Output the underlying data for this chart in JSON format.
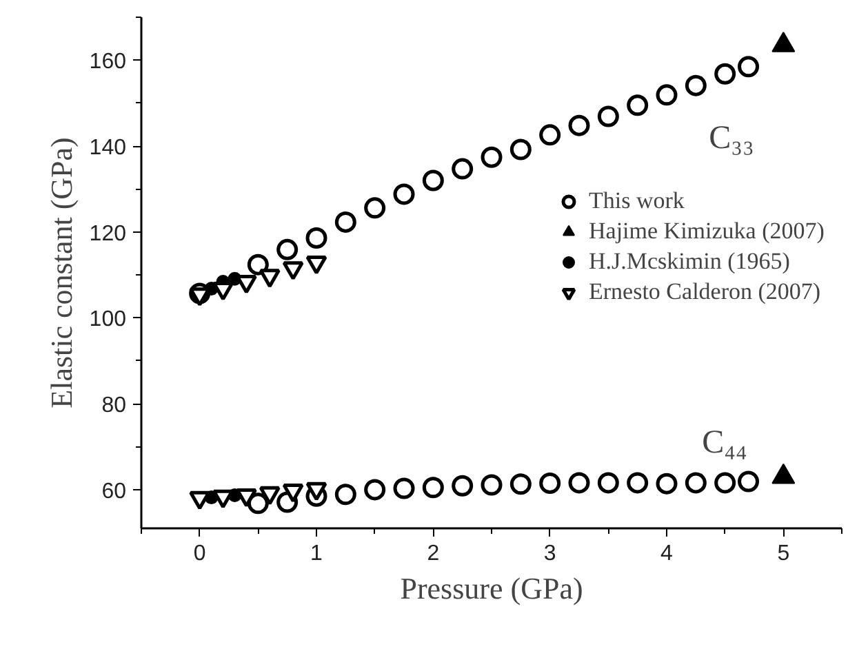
{
  "chart_data": {
    "type": "scatter",
    "xlabel": "Pressure (GPa)",
    "ylabel": "Elastic constant (GPa)",
    "xlim": [
      -0.5,
      5.5
    ],
    "ylim": [
      51,
      170
    ],
    "xticks": [
      0,
      1,
      2,
      3,
      4,
      5
    ],
    "yticks": [
      60,
      80,
      100,
      120,
      140,
      160
    ],
    "grid": false,
    "legend": "right",
    "annotations": [
      "C₃₃",
      "C₄₄"
    ],
    "series": [
      {
        "name": "This work",
        "color": "#000000",
        "marker": "circle",
        "x": [
          0,
          0.5,
          0.75,
          1,
          1.25,
          1.5,
          1.75,
          2,
          2.25,
          2.5,
          2.75,
          3,
          3.25,
          3.5,
          3.75,
          4,
          4.25,
          4.5,
          4.7,
          0.5,
          0.75,
          1,
          1.25,
          1.5,
          1.75,
          2,
          2.25,
          2.5,
          2.75,
          3,
          3.25,
          3.5,
          3.75,
          4,
          4.25,
          4.5,
          4.7
        ],
        "values": [
          105.7,
          112.4,
          115.9,
          118.6,
          122.3,
          125.6,
          128.8,
          132.0,
          134.7,
          137.4,
          139.2,
          142.6,
          144.8,
          146.9,
          149.5,
          151.9,
          154.1,
          156.8,
          158.5,
          56.8,
          57.1,
          58.5,
          58.9,
          60.0,
          60.3,
          60.5,
          60.9,
          61.1,
          61.3,
          61.5,
          61.6,
          61.6,
          61.6,
          61.4,
          61.6,
          61.6,
          61.9
        ]
      },
      {
        "name": "Hajime Kimizuka (2007)",
        "color": "#000000",
        "marker": "triangle",
        "x": [
          5,
          5
        ],
        "values": [
          163.5,
          63.0
        ]
      },
      {
        "name": "H.J.Mcskimin (1965)",
        "color": "#000000",
        "marker": "circle",
        "x": [
          0.1,
          0.2,
          0.3,
          0.1,
          0.3
        ],
        "values": [
          106.8,
          108.4,
          109.1,
          58.2,
          58.7
        ]
      },
      {
        "name": "Ernesto Calderon (2007)",
        "color": "#000000",
        "marker": "triangle",
        "x": [
          0,
          0.2,
          0.4,
          0.6,
          0.8,
          1.0,
          0,
          0.2,
          0.4,
          0.6,
          0.8,
          1.0
        ],
        "values": [
          105.5,
          106.8,
          108.4,
          109.8,
          111.6,
          112.9,
          58.1,
          58.4,
          58.7,
          59.2,
          59.8,
          60.2
        ]
      }
    ]
  }
}
